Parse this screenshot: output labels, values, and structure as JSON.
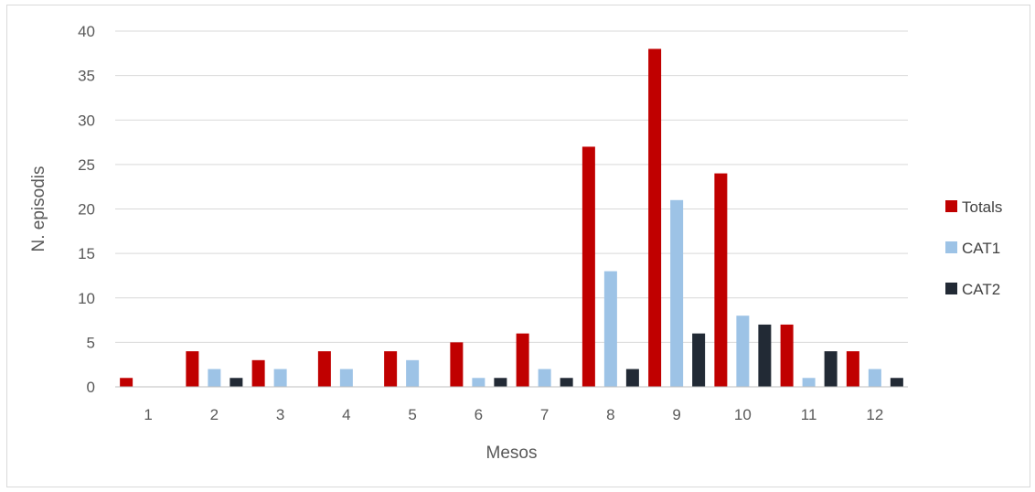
{
  "chart_data": {
    "type": "bar",
    "title": "",
    "xlabel": "Mesos",
    "ylabel": "N. episodis",
    "categories": [
      "1",
      "2",
      "3",
      "4",
      "5",
      "6",
      "7",
      "8",
      "9",
      "10",
      "11",
      "12"
    ],
    "series": [
      {
        "name": "Totals",
        "color": "#c00000",
        "values": [
          1,
          4,
          3,
          4,
          4,
          5,
          6,
          27,
          38,
          24,
          7,
          4
        ]
      },
      {
        "name": "CAT1",
        "color": "#9dc3e6",
        "values": [
          0,
          2,
          2,
          2,
          3,
          1,
          2,
          13,
          21,
          8,
          1,
          2
        ]
      },
      {
        "name": "CAT2",
        "color": "#222a35",
        "values": [
          0,
          1,
          0,
          0,
          0,
          1,
          1,
          2,
          6,
          7,
          4,
          1
        ]
      }
    ],
    "ylim": [
      0,
      40
    ],
    "yticks": [
      0,
      5,
      10,
      15,
      20,
      25,
      30,
      35,
      40
    ],
    "grid": true,
    "legend": "right"
  }
}
